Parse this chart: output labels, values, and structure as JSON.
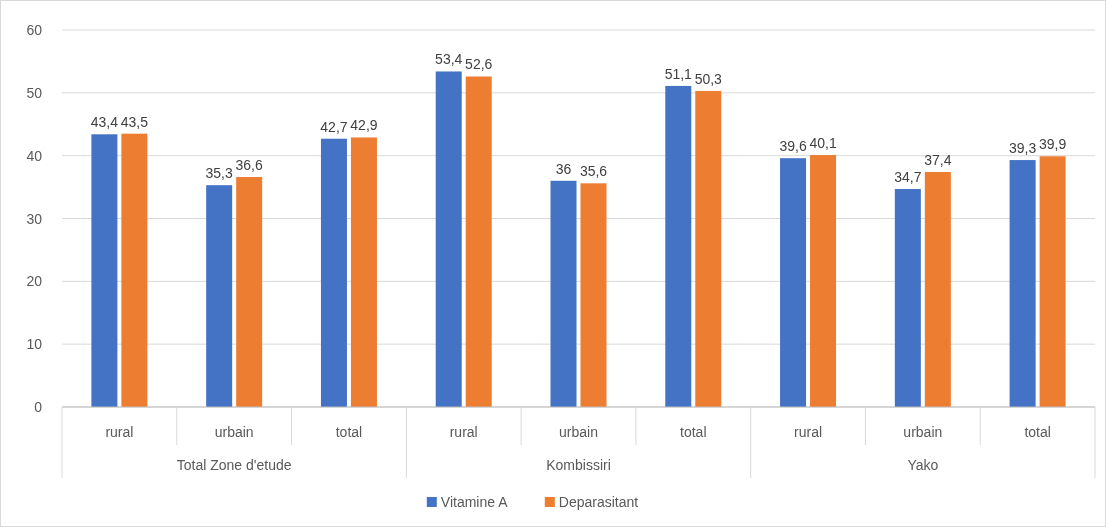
{
  "chart_data": {
    "type": "bar",
    "categories": [
      "rural",
      "urbain",
      "total",
      "rural",
      "urbain",
      "total",
      "rural",
      "urbain",
      "total"
    ],
    "series": [
      {
        "name": "Vitamine A",
        "color": "#4472c4",
        "values": [
          43.4,
          35.3,
          42.7,
          53.4,
          36,
          51.1,
          39.6,
          34.7,
          39.3
        ],
        "value_labels": [
          "43,4",
          "35,3",
          "42,7",
          "53,4",
          "36",
          "51,1",
          "39,6",
          "34,7",
          "39,3"
        ]
      },
      {
        "name": "Deparasitant",
        "color": "#ed7d31",
        "values": [
          43.5,
          36.6,
          42.9,
          52.6,
          35.6,
          50.3,
          40.1,
          37.4,
          39.9
        ],
        "value_labels": [
          "43,5",
          "36,6",
          "42,9",
          "52,6",
          "35,6",
          "50,3",
          "40,1",
          "37,4",
          "39,9"
        ]
      }
    ],
    "annotations": [
      "Total Zone d'etude",
      "Kombissiri",
      "Yako"
    ],
    "ylim": [
      0,
      60
    ],
    "yticks": [
      0,
      10,
      20,
      30,
      40,
      50,
      60
    ],
    "grid": "y",
    "legend": "bottom"
  }
}
